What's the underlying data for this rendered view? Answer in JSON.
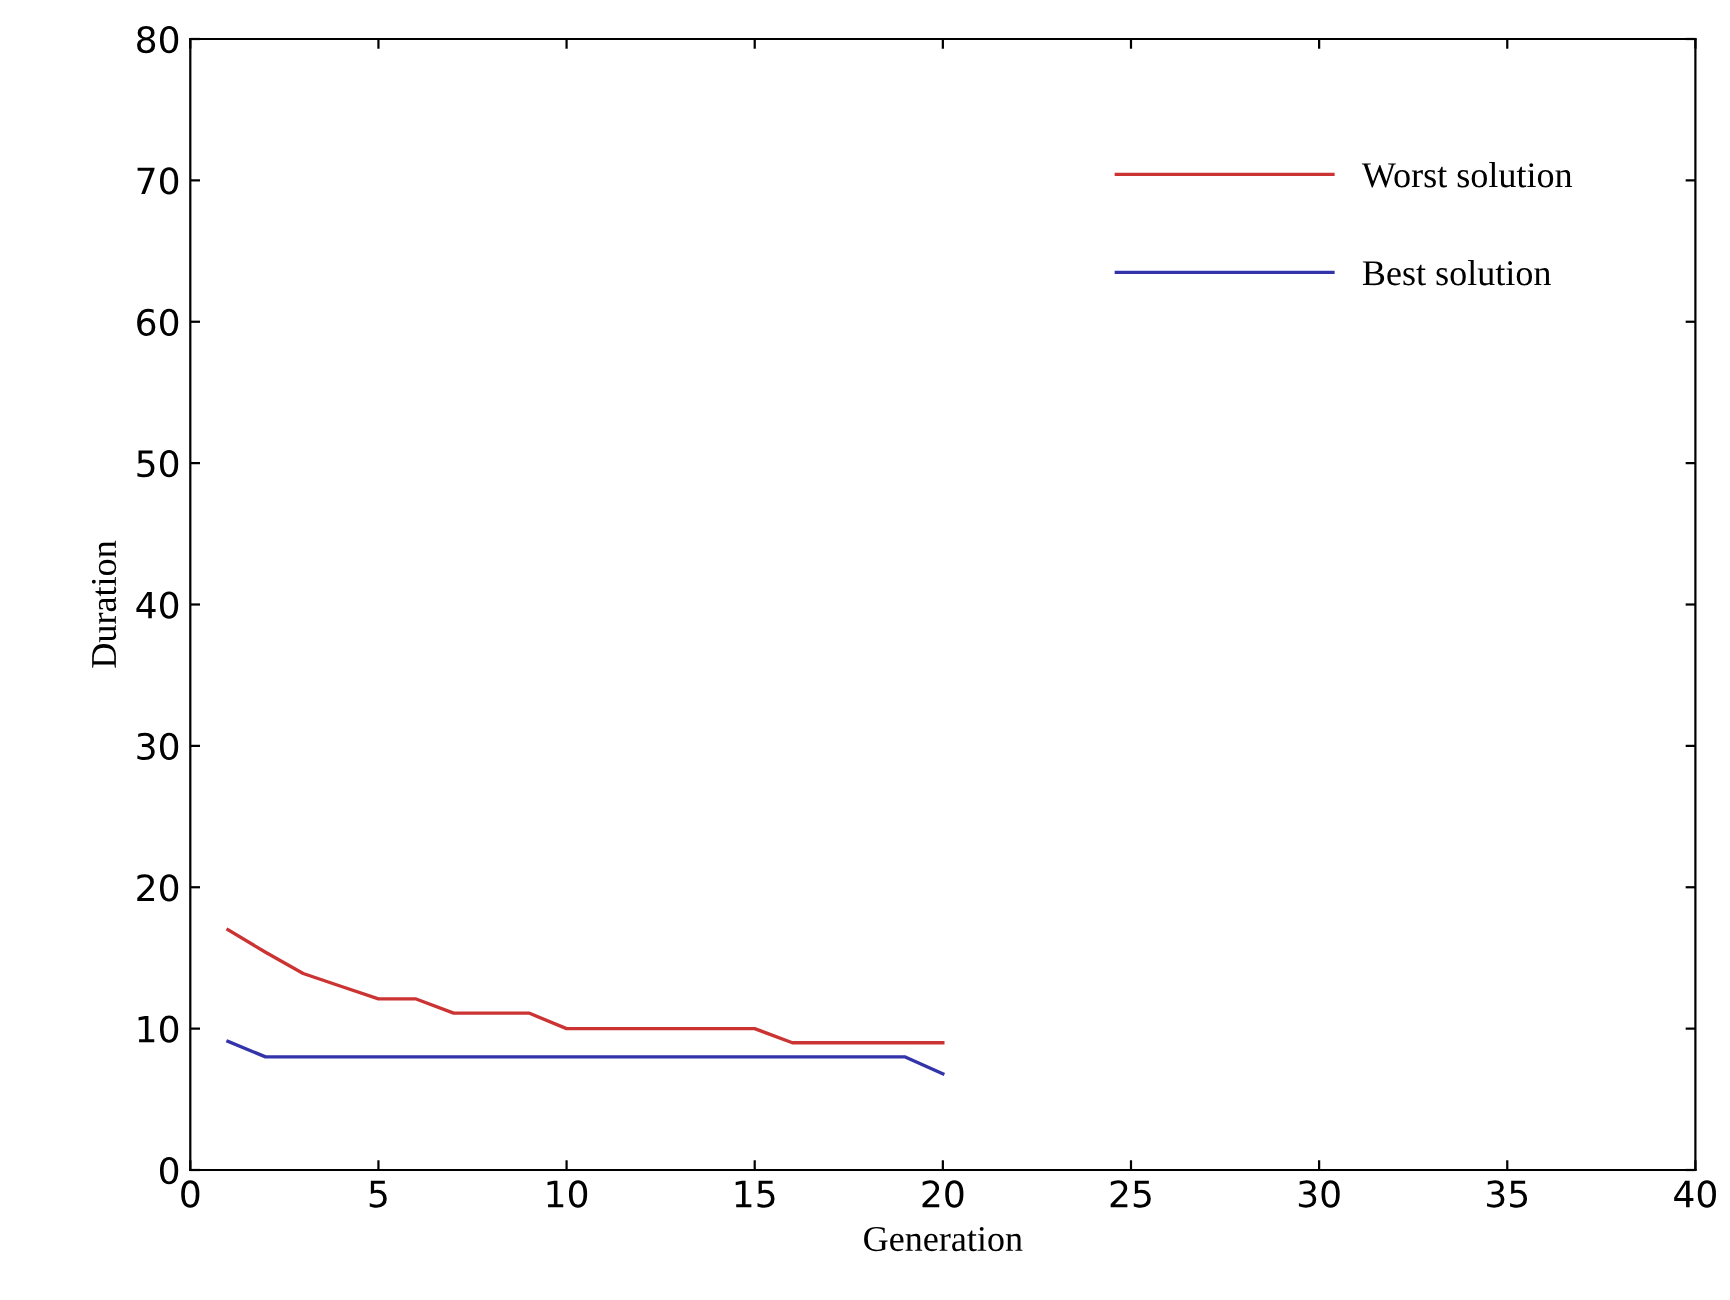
{
  "chart_data": {
    "type": "line",
    "xlabel": "Generation",
    "ylabel": "Duration",
    "x": [
      1,
      2,
      3,
      4,
      5,
      6,
      7,
      8,
      9,
      10,
      11,
      12,
      13,
      14,
      15,
      16,
      17,
      18,
      19,
      20
    ],
    "series": [
      {
        "name": "Worst solution",
        "color": "#cc3333",
        "values": [
          17,
          15.4,
          13.9,
          13,
          12.1,
          12.1,
          11.1,
          11.1,
          11.1,
          10,
          10,
          10,
          10,
          10,
          10,
          9,
          9,
          9,
          9,
          9
        ]
      },
      {
        "name": "Best solution",
        "color": "#3333aa",
        "values": [
          9.1,
          8,
          8,
          8,
          8,
          8,
          8,
          8,
          8,
          8,
          8,
          8,
          8,
          8,
          8,
          8,
          8,
          8,
          8,
          6.8
        ]
      }
    ],
    "xlim": [
      0,
      40
    ],
    "xticks": [
      0,
      5,
      10,
      15,
      20,
      25,
      30,
      35,
      40
    ],
    "ylim": [
      0,
      80
    ],
    "yticks": [
      0,
      10,
      20,
      30,
      40,
      50,
      60,
      70,
      80
    ],
    "grid": false,
    "legend": "top right",
    "marker": "none",
    "line_style": "solid"
  }
}
